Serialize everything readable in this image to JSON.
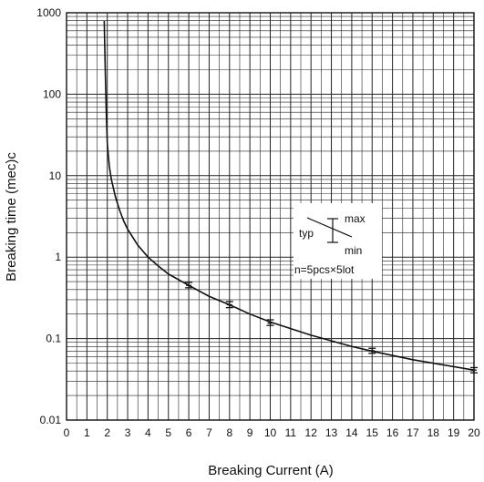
{
  "chart_data": {
    "type": "line",
    "title": "",
    "xlabel": "Breaking Current (A)",
    "ylabel": "Breaking time (mec)c",
    "xlim": [
      0,
      20
    ],
    "ylim": [
      0.01,
      1000
    ],
    "y_scale": "log",
    "grid": true,
    "x_ticks": [
      "0",
      "1",
      "2",
      "3",
      "4",
      "5",
      "6",
      "7",
      "8",
      "9",
      "10",
      "11",
      "12",
      "13",
      "14",
      "15",
      "16",
      "17",
      "18",
      "19",
      "20"
    ],
    "y_ticks": [
      "0.01",
      "0.1",
      "1",
      "10",
      "100",
      "1000"
    ],
    "series": [
      {
        "x": [
          1.85,
          1.9,
          1.95,
          2.0,
          2.1,
          2.2,
          2.4,
          2.6,
          2.8,
          3.0,
          3.5,
          4.0,
          4.5,
          5.0,
          6.0,
          7.0,
          8.0,
          9.0,
          10.0,
          12.0,
          14.0,
          15.0,
          17.0,
          20.0
        ],
        "y": [
          800,
          200,
          60,
          25,
          13,
          9,
          5.5,
          3.8,
          2.8,
          2.2,
          1.4,
          1.0,
          0.78,
          0.62,
          0.45,
          0.33,
          0.26,
          0.2,
          0.16,
          0.11,
          0.08,
          0.07,
          0.055,
          0.041
        ]
      }
    ],
    "error_bars": [
      {
        "x": 6,
        "min": 0.42,
        "typ": 0.45,
        "max": 0.49
      },
      {
        "x": 8,
        "min": 0.24,
        "typ": 0.26,
        "max": 0.285
      },
      {
        "x": 10,
        "min": 0.145,
        "typ": 0.155,
        "max": 0.17
      },
      {
        "x": 15,
        "min": 0.066,
        "typ": 0.071,
        "max": 0.076
      },
      {
        "x": 20,
        "min": 0.038,
        "typ": 0.041,
        "max": 0.044
      }
    ],
    "legend": {
      "typ_label": "typ",
      "max_label": "max",
      "min_label": "min",
      "note": "n=5pcs×5lot",
      "placement": "right"
    }
  }
}
